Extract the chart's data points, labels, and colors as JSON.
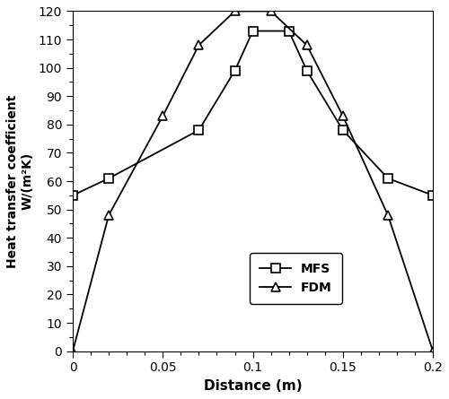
{
  "MFS_x": [
    0.0,
    0.02,
    0.07,
    0.09,
    0.1,
    0.12,
    0.13,
    0.15,
    0.175,
    0.2
  ],
  "MFS_y": [
    55,
    61,
    78,
    99,
    113,
    113,
    99,
    78,
    61,
    55
  ],
  "FDM_x": [
    0.0,
    0.02,
    0.05,
    0.07,
    0.09,
    0.11,
    0.13,
    0.15,
    0.175,
    0.2
  ],
  "FDM_y": [
    0,
    48,
    83,
    108,
    120,
    120,
    108,
    83,
    48,
    0
  ],
  "xlabel": "Distance (m)",
  "ylabel_line1": "Heat transfer coefficient",
  "ylabel_line2": "W/(m²K)",
  "xlim": [
    0,
    0.2
  ],
  "ylim": [
    0,
    120
  ],
  "xticks": [
    0,
    0.05,
    0.1,
    0.15,
    0.2
  ],
  "yticks": [
    0,
    10,
    20,
    30,
    40,
    50,
    60,
    70,
    80,
    90,
    100,
    110,
    120
  ],
  "line_color": "black",
  "marker_mfs": "s",
  "marker_fdm": "^",
  "legend_mfs": "MFS",
  "legend_fdm": "FDM",
  "markersize": 7,
  "linewidth": 1.3,
  "bg_color": "white"
}
